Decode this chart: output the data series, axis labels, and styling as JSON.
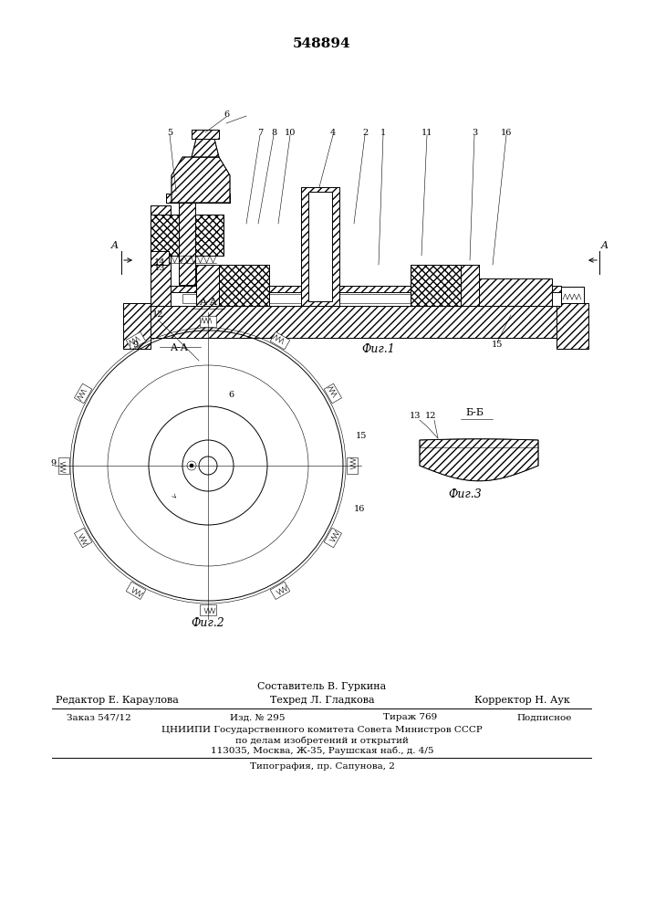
{
  "patent_number": "548894",
  "fig1_label": "Фиг.1",
  "fig2_label": "Фиг.2",
  "fig3_label": "Фиг.3",
  "aa_label": "A-A",
  "bb_label": "Б-Б",
  "composer": "Составитель В. Гуркина",
  "editor": "Редактор Е. Караулова",
  "techred": "Техред Л. Гладкова",
  "corrector": "Корректор Н. Аук",
  "order": "Заказ 547/12",
  "izdanie": "Изд. № 295",
  "tirazh": "Тираж 769",
  "podpisnoe": "Подписное",
  "cniipii_line1": "ЦНИИПИ Государственного комитета Совета Министров СССР",
  "cniipii_line2": "по делам изобретений и открытий",
  "cniipii_line3": "113035, Москва, Ж-35, Раушская наб., д. 4/5",
  "tipografia": "Типография, пр. Сапунова, 2",
  "bg_color": "#ffffff",
  "line_color": "#000000"
}
